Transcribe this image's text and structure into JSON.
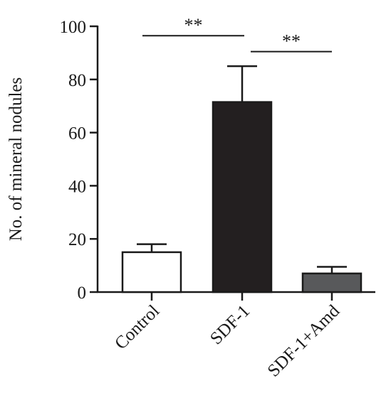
{
  "chart_data": {
    "type": "bar",
    "title": "",
    "xlabel": "",
    "ylabel": "No. of mineral nodules",
    "ylim": [
      0,
      100
    ],
    "yticks": [
      0,
      20,
      40,
      60,
      80,
      100
    ],
    "grid": false,
    "categories": [
      "Control",
      "SDF-1",
      "SDF-1+Amd"
    ],
    "values": [
      15,
      71.5,
      7
    ],
    "errors": [
      3,
      13.5,
      2.5
    ],
    "bar_colors": [
      "#ffffff",
      "#231f20",
      "#58595b"
    ],
    "significance": [
      {
        "from": 0,
        "to": 1,
        "label": "**",
        "y": 97
      },
      {
        "from": 1,
        "to": 2,
        "label": "**",
        "y": 91
      }
    ]
  }
}
